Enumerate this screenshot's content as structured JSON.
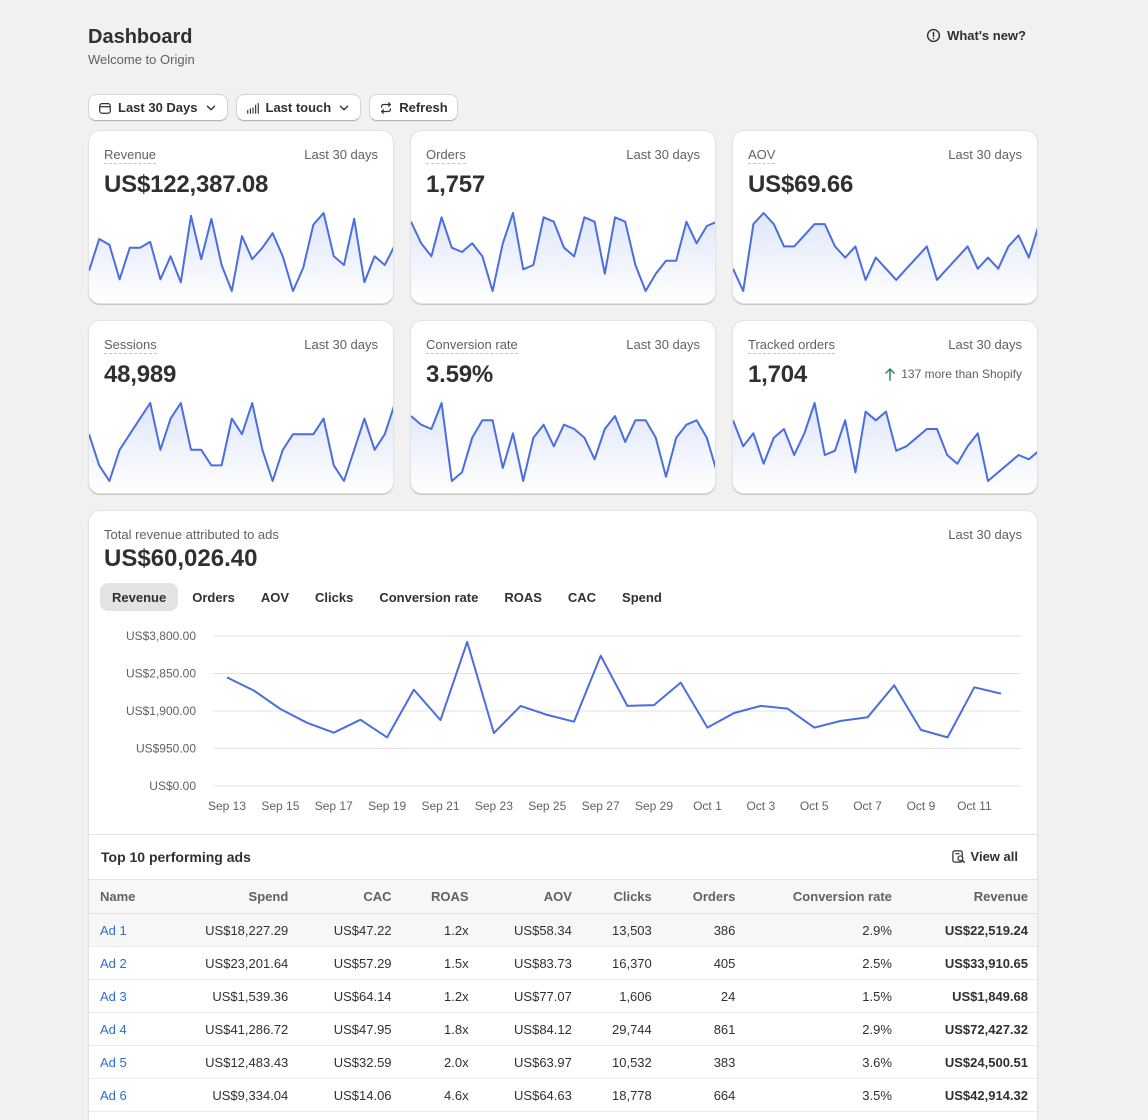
{
  "header": {
    "title": "Dashboard",
    "subtitle": "Welcome to Origin",
    "whats_new": "What's new?"
  },
  "filters": {
    "date_range": "Last 30 Days",
    "attribution": "Last touch",
    "refresh": "Refresh"
  },
  "colors": {
    "line": "#4a6ee0",
    "fill_top": "#dfe6fb"
  },
  "metrics": [
    {
      "label": "Revenue",
      "period": "Last 30 days",
      "value": "US$122,387.08",
      "trend": [
        56,
        67,
        65,
        53,
        64,
        64,
        66,
        53,
        61,
        52,
        75,
        60,
        74,
        58,
        49,
        68,
        60,
        64,
        69,
        61,
        49,
        57,
        72,
        76,
        61,
        58,
        74,
        52,
        61,
        58,
        65
      ]
    },
    {
      "label": "Orders",
      "period": "Last 30 days",
      "value": "1,757",
      "trend": [
        65,
        60,
        57,
        66,
        59,
        58,
        60,
        57,
        49,
        60,
        67,
        54,
        55,
        66,
        65,
        59,
        57,
        66,
        65,
        53,
        66,
        65,
        55,
        49,
        53,
        56,
        56,
        65,
        60,
        64,
        65
      ]
    },
    {
      "label": "AOV",
      "period": "Last 30 days",
      "value": "US$69.66",
      "trend": [
        64,
        62,
        68,
        69,
        68,
        66,
        66,
        67,
        68,
        68,
        66,
        65,
        66,
        63,
        65,
        64,
        63,
        64,
        65,
        66,
        63,
        64,
        65,
        66,
        64,
        65,
        64,
        66,
        67,
        65,
        68
      ]
    },
    {
      "label": "Sessions",
      "period": "Last 30 days",
      "value": "48,989",
      "trend": [
        48,
        46,
        45,
        47,
        48,
        49,
        50,
        47,
        49,
        50,
        47,
        47,
        46,
        46,
        49,
        48,
        50,
        47,
        45,
        47,
        48,
        48,
        48,
        49,
        46,
        45,
        47,
        49,
        47,
        48,
        50
      ]
    },
    {
      "label": "Conversion rate",
      "period": "Last 30 days",
      "value": "3.59%",
      "trend": [
        3.65,
        3.63,
        3.62,
        3.68,
        3.5,
        3.52,
        3.6,
        3.64,
        3.64,
        3.53,
        3.61,
        3.5,
        3.6,
        3.63,
        3.58,
        3.63,
        3.62,
        3.6,
        3.55,
        3.62,
        3.65,
        3.59,
        3.64,
        3.64,
        3.6,
        3.51,
        3.6,
        3.63,
        3.64,
        3.6,
        3.52
      ]
    },
    {
      "label": "Tracked orders",
      "period": "Last 30 days",
      "value": "1,704",
      "note": "137 more than Shopify",
      "trend": [
        58,
        52,
        55,
        48,
        54,
        56,
        50,
        55,
        62,
        50,
        51,
        58,
        46,
        60,
        58,
        60,
        51,
        52,
        54,
        56,
        56,
        50,
        48,
        52,
        55,
        44,
        46,
        48,
        50,
        49,
        51
      ]
    }
  ],
  "ads_chart": {
    "label": "Total revenue attributed to ads",
    "period": "Last 30 days",
    "value": "US$60,026.40",
    "tabs": [
      "Revenue",
      "Orders",
      "AOV",
      "Clicks",
      "Conversion rate",
      "ROAS",
      "CAC",
      "Spend"
    ],
    "active_tab": "Revenue"
  },
  "chart_data": {
    "type": "line",
    "title": "Total revenue attributed to ads",
    "ylabel": "Revenue",
    "ylim": [
      0,
      3800
    ],
    "yticks": [
      "US$0.00",
      "US$950.00",
      "US$1,900.00",
      "US$2,850.00",
      "US$3,800.00"
    ],
    "ytick_values": [
      0,
      950,
      1900,
      2850,
      3800
    ],
    "xticks": [
      "Sep 13",
      "Sep 15",
      "Sep 17",
      "Sep 19",
      "Sep 21",
      "Sep 23",
      "Sep 25",
      "Sep 27",
      "Sep 29",
      "Oct 1",
      "Oct 3",
      "Oct 5",
      "Oct 7",
      "Oct 9",
      "Oct 11"
    ],
    "series": [
      {
        "name": "Revenue",
        "values": [
          2750,
          2420,
          1950,
          1600,
          1350,
          1680,
          1230,
          2440,
          1670,
          3650,
          1340,
          2030,
          1800,
          1630,
          3300,
          2030,
          2050,
          2620,
          1480,
          1850,
          2030,
          1960,
          1480,
          1650,
          1740,
          2550,
          1420,
          1230,
          2500,
          2340
        ]
      }
    ]
  },
  "table": {
    "title": "Top 10 performing ads",
    "view_all": "View all",
    "columns": [
      "Name",
      "Spend",
      "CAC",
      "ROAS",
      "AOV",
      "Clicks",
      "Orders",
      "Conversion rate",
      "Revenue"
    ],
    "rows": [
      [
        "Ad 1",
        "US$18,227.29",
        "US$47.22",
        "1.2x",
        "US$58.34",
        "13,503",
        "386",
        "2.9%",
        "US$22,519.24"
      ],
      [
        "Ad 2",
        "US$23,201.64",
        "US$57.29",
        "1.5x",
        "US$83.73",
        "16,370",
        "405",
        "2.5%",
        "US$33,910.65"
      ],
      [
        "Ad 3",
        "US$1,539.36",
        "US$64.14",
        "1.2x",
        "US$77.07",
        "1,606",
        "24",
        "1.5%",
        "US$1,849.68"
      ],
      [
        "Ad 4",
        "US$41,286.72",
        "US$47.95",
        "1.8x",
        "US$84.12",
        "29,744",
        "861",
        "2.9%",
        "US$72,427.32"
      ],
      [
        "Ad 5",
        "US$12,483.43",
        "US$32.59",
        "2.0x",
        "US$63.97",
        "10,532",
        "383",
        "3.6%",
        "US$24,500.51"
      ],
      [
        "Ad 6",
        "US$9,334.04",
        "US$14.06",
        "4.6x",
        "US$64.63",
        "18,778",
        "664",
        "3.5%",
        "US$42,914.32"
      ]
    ]
  }
}
